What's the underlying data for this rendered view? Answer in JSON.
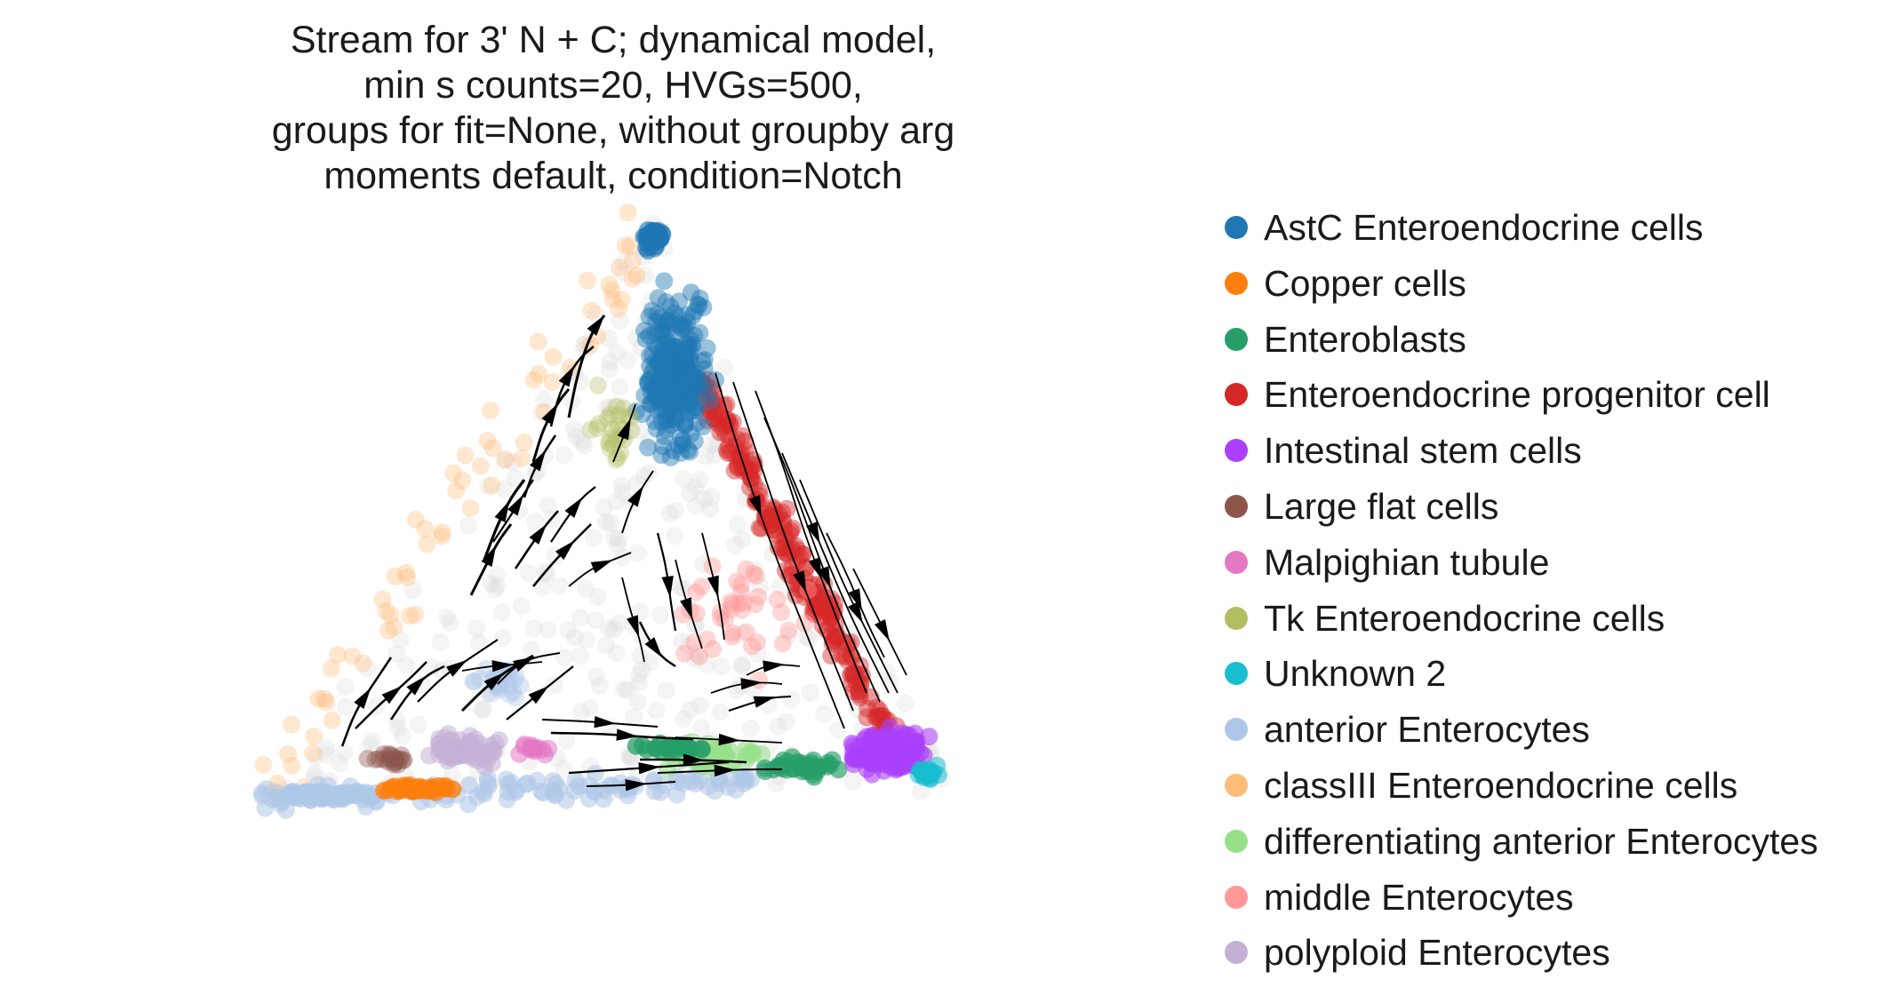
{
  "chart_data": {
    "type": "scatter",
    "subtype": "velocity-stream-embedding",
    "title_lines": [
      "Stream for 3' N + C; dynamical model,",
      "min s counts=20, HVGs=500,",
      "groups for fit=None, without groupby arg",
      "moments default, condition=Notch"
    ],
    "axes_visible": false,
    "grid": false,
    "legend_placement": "right",
    "legend": [
      {
        "label": "AstC Enteroendocrine cells",
        "color": "#1f77b4"
      },
      {
        "label": "Copper cells",
        "color": "#ff7f0e"
      },
      {
        "label": "Enteroblasts",
        "color": "#279e68"
      },
      {
        "label": "Enteroendocrine progenitor cell",
        "color": "#d62728"
      },
      {
        "label": "Intestinal stem cells",
        "color": "#aa40fc"
      },
      {
        "label": "Large flat cells",
        "color": "#8c564b"
      },
      {
        "label": "Malpighian tubule",
        "color": "#e377c2"
      },
      {
        "label": "Tk Enteroendocrine cells",
        "color": "#b5bd61"
      },
      {
        "label": "Unknown 2",
        "color": "#17becf"
      },
      {
        "label": "anterior Enterocytes",
        "color": "#aec7e8"
      },
      {
        "label": "classIII Enteroendocrine cells",
        "color": "#ffbb78"
      },
      {
        "label": "differentiating anterior Enterocytes",
        "color": "#98df8a"
      },
      {
        "label": "middle Enterocytes",
        "color": "#ff9896"
      },
      {
        "label": "polyploid Enterocytes",
        "color": "#c5b0d5"
      }
    ],
    "stream_color": "#000000",
    "background_cell_color": "#d9d9d9"
  }
}
